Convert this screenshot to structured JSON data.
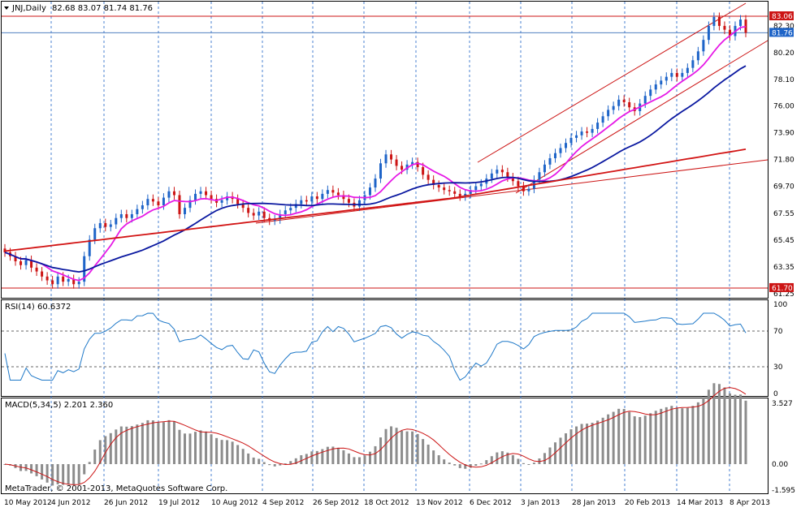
{
  "window": {
    "symbol_label": "JNJ,Daily",
    "ohlc_text": "82.68 83.07 81.74 81.76",
    "copyright": "MetaTrader, © 2001-2013, MetaQuotes Software Corp."
  },
  "colors": {
    "bull": "#1e64c8",
    "bear": "#cc1414",
    "ma_fast": "#e619e6",
    "ma_mid": "#0a18a0",
    "ma_slow": "#d21414",
    "rsi": "#1e78c8",
    "macd_hist": "#8c8c8c",
    "macd_signal": "#cc1414",
    "grid": "#1e64c8",
    "axis_border": "#000000"
  },
  "price_panel": {
    "y_ticks": [
      "83.06",
      "82.30",
      "81.76",
      "80.20",
      "78.10",
      "76.00",
      "73.90",
      "71.80",
      "69.70",
      "67.55",
      "65.45",
      "63.35",
      "61.70",
      "61.25"
    ],
    "tag_high": "83.06",
    "tag_close": "81.76",
    "tag_low": "61.70",
    "high_line": 83.06,
    "close_line": 81.76,
    "low_line": 61.7
  },
  "rsi_panel": {
    "label": "RSI(14) 60.6372",
    "y_ticks": [
      "100",
      "70",
      "30",
      "0"
    ],
    "levels": [
      70,
      30
    ]
  },
  "macd_panel": {
    "label": "MACD(5,34,5) 2.201 2.360",
    "y_ticks": [
      "3.527",
      "0.00",
      "-1.595"
    ]
  },
  "x_axis": {
    "labels": [
      "10 May 2012",
      "4 Jun 2012",
      "26 Jun 2012",
      "19 Jul 2012",
      "10 Aug 2012",
      "4 Sep 2012",
      "26 Sep 2012",
      "18 Oct 2012",
      "13 Nov 2012",
      "6 Dec 2012",
      "3 Jan 2013",
      "28 Jan 2013",
      "20 Feb 2013",
      "14 Mar 2013",
      "8 Apr 2013"
    ]
  },
  "chart_data": {
    "type": "candlestick",
    "symbol": "JNJ",
    "timeframe": "Daily",
    "last_bar": {
      "open": 82.68,
      "high": 83.07,
      "low": 81.74,
      "close": 81.76
    },
    "date_range": [
      "10 May 2012",
      "8 Apr 2013"
    ],
    "ylim": [
      61.25,
      83.5
    ],
    "close_series": [
      64.5,
      64.2,
      63.8,
      63.5,
      63.9,
      63.3,
      63.0,
      62.6,
      62.3,
      62.0,
      62.6,
      62.2,
      62.4,
      62.0,
      62.2,
      64.2,
      65.5,
      66.4,
      66.8,
      66.5,
      66.7,
      67.2,
      67.5,
      67.2,
      67.5,
      67.9,
      68.2,
      68.7,
      68.5,
      68.2,
      68.8,
      69.3,
      69.0,
      67.5,
      68.0,
      68.6,
      69.1,
      69.3,
      69.0,
      68.7,
      68.4,
      68.6,
      68.9,
      68.7,
      68.3,
      68.0,
      67.6,
      67.4,
      67.7,
      67.2,
      67.0,
      67.1,
      67.5,
      67.8,
      68.0,
      68.3,
      68.6,
      68.5,
      68.9,
      68.7,
      69.1,
      69.4,
      69.2,
      69.0,
      68.7,
      68.4,
      68.1,
      68.6,
      69.0,
      69.6,
      70.3,
      71.5,
      72.2,
      71.8,
      71.3,
      71.0,
      71.4,
      71.6,
      71.2,
      70.6,
      70.2,
      69.8,
      69.6,
      69.4,
      69.3,
      69.1,
      68.9,
      69.1,
      69.4,
      69.7,
      69.9,
      70.3,
      70.7,
      71.0,
      70.8,
      70.4,
      70.1,
      69.7,
      69.3,
      69.5,
      70.2,
      70.8,
      71.4,
      71.9,
      72.3,
      72.7,
      73.1,
      73.5,
      73.7,
      74.0,
      73.9,
      74.2,
      74.7,
      75.2,
      75.7,
      76.0,
      76.5,
      76.3,
      75.9,
      75.6,
      76.2,
      76.8,
      77.3,
      77.7,
      78.0,
      78.3,
      78.6,
      78.3,
      78.6,
      79.0,
      79.6,
      80.3,
      81.2,
      82.3,
      83.0,
      82.3,
      82.0,
      81.5,
      82.3,
      82.8,
      81.76
    ],
    "annotations": [
      "RSI(14) 60.6372",
      "MACD(5,34,5) 2.201 2.360"
    ]
  }
}
